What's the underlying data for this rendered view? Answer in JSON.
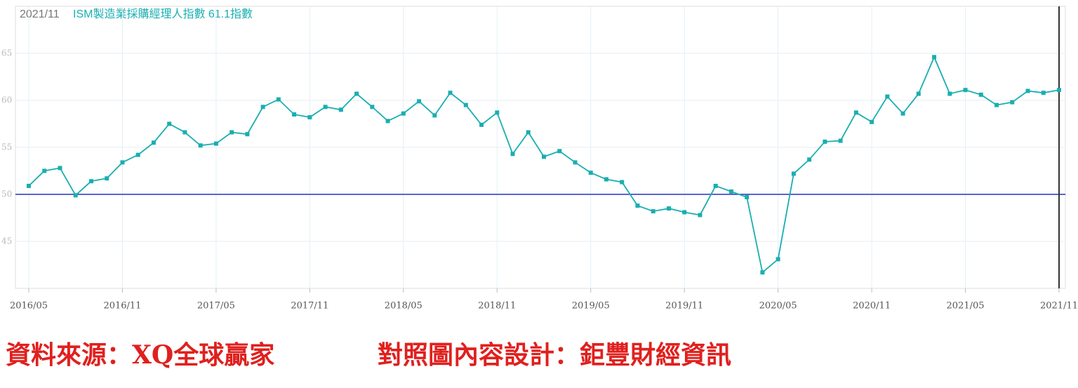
{
  "chart_data": {
    "type": "line",
    "title_date": "2021/11",
    "title": "ISM製造業採購經理人指數 61.1指數",
    "categories": [
      "2016/05",
      null,
      null,
      null,
      null,
      null,
      "2016/11",
      null,
      null,
      null,
      null,
      null,
      "2017/05",
      null,
      null,
      null,
      null,
      null,
      "2017/11",
      null,
      null,
      null,
      null,
      null,
      "2018/05",
      null,
      null,
      null,
      null,
      null,
      "2018/11",
      null,
      null,
      null,
      null,
      null,
      "2019/05",
      null,
      null,
      null,
      null,
      null,
      "2019/11",
      null,
      null,
      null,
      null,
      null,
      "2020/05",
      null,
      null,
      null,
      null,
      null,
      "2020/11",
      null,
      null,
      null,
      null,
      null,
      "2021/05",
      null,
      null,
      null,
      null,
      null,
      "2021/11"
    ],
    "series": [
      {
        "name": "ISM製造業採購經理人指數",
        "color": "#1aaeb0",
        "values": [
          50.9,
          52.5,
          52.8,
          49.9,
          51.4,
          51.7,
          53.4,
          54.2,
          55.5,
          57.5,
          56.6,
          55.2,
          55.4,
          56.6,
          56.4,
          59.3,
          60.1,
          58.5,
          58.2,
          59.3,
          59.0,
          60.7,
          59.3,
          57.8,
          58.6,
          59.9,
          58.4,
          60.8,
          59.5,
          57.4,
          58.7,
          54.3,
          56.6,
          54.0,
          54.6,
          53.4,
          52.3,
          51.6,
          51.3,
          48.8,
          48.2,
          48.5,
          48.1,
          47.8,
          50.9,
          50.3,
          49.7,
          41.7,
          43.1,
          52.2,
          53.7,
          55.6,
          55.7,
          58.7,
          57.7,
          60.4,
          58.6,
          60.7,
          64.6,
          60.7,
          61.1,
          60.6,
          59.5,
          59.8,
          61.0,
          60.8,
          61.1
        ]
      }
    ],
    "ylim": [
      40,
      70
    ],
    "yticks": [
      45,
      50,
      55,
      60,
      65
    ],
    "grid": true,
    "reference_line": 50,
    "reference_color": "#2233bb",
    "source": "資料來源：XQ全球贏家",
    "credit": "對照圖內容設計：鉅豐財經資訊"
  }
}
